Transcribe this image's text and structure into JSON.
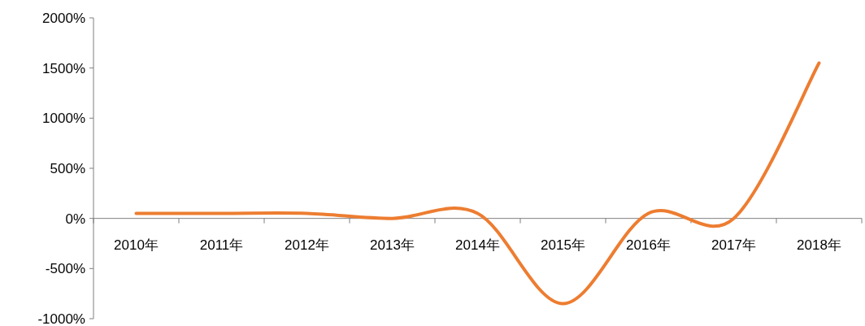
{
  "chart_data": {
    "type": "line",
    "categories": [
      "2010年",
      "2011年",
      "2012年",
      "2013年",
      "2014年",
      "2015年",
      "2016年",
      "2017年",
      "2018年"
    ],
    "series": [
      {
        "color": "#ed7d31",
        "values": [
          50,
          50,
          50,
          0,
          50,
          -850,
          50,
          0,
          1550
        ]
      }
    ],
    "ylim": [
      -1000,
      2000
    ],
    "yticks": [
      {
        "value": -1000,
        "label": "-1000%"
      },
      {
        "value": -500,
        "label": "-500%"
      },
      {
        "value": 0,
        "label": "0%"
      },
      {
        "value": 500,
        "label": "500%"
      },
      {
        "value": 1000,
        "label": "1000%"
      },
      {
        "value": 1500,
        "label": "1500%"
      },
      {
        "value": 2000,
        "label": "2000%"
      }
    ],
    "grid": false,
    "marker": "none",
    "line_style": "solid"
  }
}
